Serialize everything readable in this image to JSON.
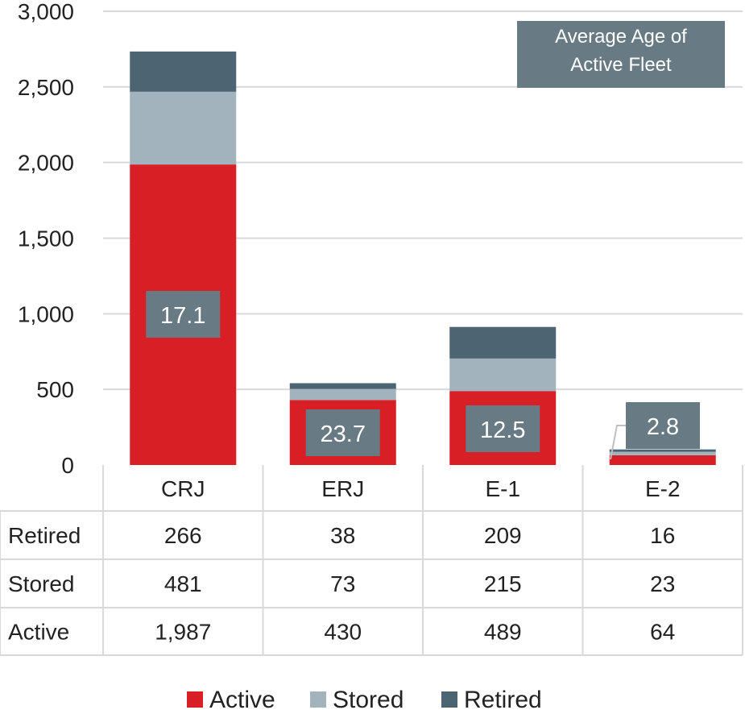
{
  "chart_data": {
    "type": "bar",
    "stacked": true,
    "categories": [
      "CRJ",
      "ERJ",
      "E-1",
      "E-2"
    ],
    "series": [
      {
        "name": "Active",
        "values": [
          1987,
          430,
          489,
          64
        ],
        "color": "#D81F26"
      },
      {
        "name": "Stored",
        "values": [
          481,
          73,
          215,
          23
        ],
        "color": "#A2B3BD"
      },
      {
        "name": "Retired",
        "values": [
          266,
          38,
          209,
          16
        ],
        "color": "#4D6572"
      }
    ],
    "table_rows": [
      {
        "label": "Retired",
        "cells": [
          "266",
          "38",
          "209",
          "16"
        ]
      },
      {
        "label": "Stored",
        "cells": [
          "481",
          "73",
          "215",
          "23"
        ]
      },
      {
        "label": "Active",
        "cells": [
          "1,987",
          "430",
          "489",
          "64"
        ]
      }
    ],
    "average_age_labels": [
      "17.1",
      "23.7",
      "12.5",
      "2.8"
    ],
    "annotation": [
      "Average Age of",
      "Active Fleet"
    ],
    "y_ticks": [
      "0",
      "500",
      "1,000",
      "1,500",
      "2,000",
      "2,500",
      "3,000"
    ],
    "ylim": [
      0,
      3000
    ],
    "grid": true,
    "legend": "bottom",
    "label_box_color": "#687A84"
  }
}
